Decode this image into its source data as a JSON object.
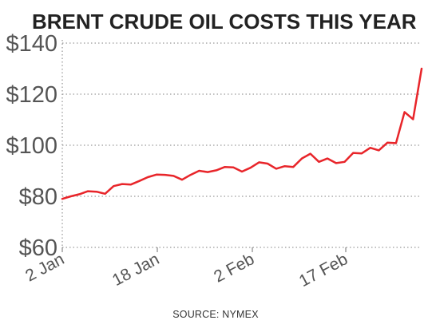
{
  "chart_data": {
    "type": "line",
    "title": "BRENT CRUDE OIL COSTS THIS YEAR",
    "xlabel": "",
    "ylabel": "",
    "source": "SOURCE: NYMEX",
    "ylim": [
      60,
      140
    ],
    "y_ticks": [
      60,
      80,
      100,
      120,
      140
    ],
    "y_tick_labels": [
      "$60",
      "$80",
      "$100",
      "$120",
      "$140"
    ],
    "x_ticks": [
      "2 Jan",
      "18 Jan",
      "2 Feb",
      "17 Feb"
    ],
    "grid": "horizontal-dotted",
    "colors": {
      "line": "#e8252a",
      "grid": "#9a9a9a",
      "text": "#555555",
      "title": "#222222"
    },
    "series": [
      {
        "values": [
          79.0,
          80.0,
          80.8,
          82.0,
          81.8,
          81.0,
          84.0,
          84.8,
          84.6,
          86.0,
          87.5,
          88.5,
          88.4,
          88.0,
          86.5,
          88.4,
          90.0,
          89.5,
          90.2,
          91.5,
          91.3,
          89.7,
          91.2,
          93.3,
          92.8,
          90.8,
          91.8,
          91.5,
          94.8,
          96.7,
          93.5,
          94.8,
          93.0,
          93.5,
          97.0,
          96.8,
          99.0,
          98.0,
          101.0,
          100.8,
          113.0,
          110.2,
          130.0
        ]
      }
    ]
  }
}
